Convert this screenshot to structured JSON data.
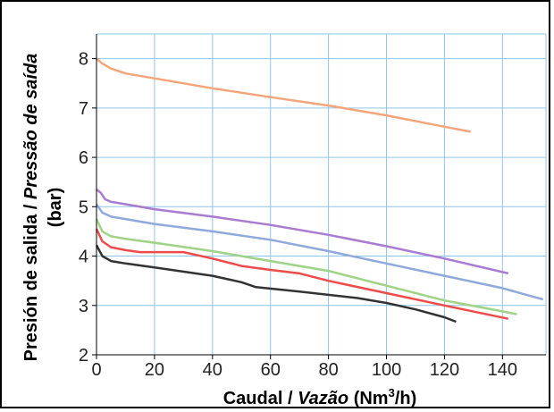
{
  "chart_data": {
    "type": "line",
    "xlabel": {
      "plain": "Caudal / ",
      "italic": "Vazão",
      "unit_pre": " (Nm",
      "unit_sup": "3",
      "unit_post": "/h)"
    },
    "ylabel": {
      "line1_plain": "Presión de salida / ",
      "line1_italic": "Pressão de saída",
      "line2": "(bar)"
    },
    "xlim": [
      0,
      155
    ],
    "ylim": [
      2,
      8.5
    ],
    "x_ticks": [
      0,
      20,
      40,
      60,
      80,
      100,
      120,
      140
    ],
    "y_ticks": [
      2,
      3,
      4,
      5,
      6,
      7,
      8
    ],
    "x_tick_labels": [
      "0",
      "20",
      "40",
      "60",
      "80",
      "100",
      "120",
      "140"
    ],
    "y_tick_labels": [
      "2",
      "3",
      "4",
      "5",
      "6",
      "7",
      "8"
    ],
    "grid": true,
    "colors": {
      "grid": "#8fc6e6",
      "frame": "#000000",
      "background": "#ffffff"
    },
    "series": [
      {
        "color": "#f4a67a",
        "points": [
          [
            0,
            8.0
          ],
          [
            2,
            7.9
          ],
          [
            5,
            7.8
          ],
          [
            10,
            7.7
          ],
          [
            20,
            7.6
          ],
          [
            40,
            7.4
          ],
          [
            60,
            7.22
          ],
          [
            80,
            7.05
          ],
          [
            100,
            6.85
          ],
          [
            120,
            6.62
          ],
          [
            129,
            6.52
          ]
        ]
      },
      {
        "color": "#a97bd1",
        "points": [
          [
            0,
            5.35
          ],
          [
            1.5,
            5.28
          ],
          [
            3,
            5.15
          ],
          [
            5,
            5.1
          ],
          [
            10,
            5.05
          ],
          [
            20,
            4.95
          ],
          [
            40,
            4.8
          ],
          [
            60,
            4.63
          ],
          [
            80,
            4.43
          ],
          [
            100,
            4.2
          ],
          [
            120,
            3.95
          ],
          [
            142,
            3.65
          ]
        ]
      },
      {
        "color": "#8fa9dd",
        "points": [
          [
            0,
            5.05
          ],
          [
            2,
            4.88
          ],
          [
            5,
            4.8
          ],
          [
            10,
            4.75
          ],
          [
            20,
            4.65
          ],
          [
            40,
            4.5
          ],
          [
            60,
            4.33
          ],
          [
            80,
            4.1
          ],
          [
            100,
            3.85
          ],
          [
            120,
            3.6
          ],
          [
            140,
            3.35
          ],
          [
            154,
            3.12
          ]
        ]
      },
      {
        "color": "#9fd385",
        "points": [
          [
            0,
            4.75
          ],
          [
            2,
            4.5
          ],
          [
            5,
            4.4
          ],
          [
            10,
            4.35
          ],
          [
            20,
            4.27
          ],
          [
            40,
            4.1
          ],
          [
            60,
            3.9
          ],
          [
            80,
            3.7
          ],
          [
            100,
            3.4
          ],
          [
            120,
            3.1
          ],
          [
            140,
            2.88
          ],
          [
            145,
            2.82
          ]
        ]
      },
      {
        "color": "#ee4b4b",
        "points": [
          [
            0,
            4.55
          ],
          [
            2,
            4.3
          ],
          [
            5,
            4.18
          ],
          [
            10,
            4.12
          ],
          [
            15,
            4.08
          ],
          [
            30,
            4.08
          ],
          [
            40,
            3.95
          ],
          [
            50,
            3.8
          ],
          [
            60,
            3.72
          ],
          [
            70,
            3.65
          ],
          [
            80,
            3.5
          ],
          [
            100,
            3.25
          ],
          [
            120,
            3.0
          ],
          [
            142,
            2.73
          ]
        ]
      },
      {
        "color": "#333333",
        "points": [
          [
            0,
            4.22
          ],
          [
            2,
            4.0
          ],
          [
            5,
            3.9
          ],
          [
            10,
            3.85
          ],
          [
            20,
            3.77
          ],
          [
            40,
            3.6
          ],
          [
            50,
            3.47
          ],
          [
            55,
            3.37
          ],
          [
            70,
            3.28
          ],
          [
            90,
            3.15
          ],
          [
            100,
            3.05
          ],
          [
            110,
            2.92
          ],
          [
            120,
            2.76
          ],
          [
            124,
            2.67
          ]
        ]
      }
    ]
  }
}
